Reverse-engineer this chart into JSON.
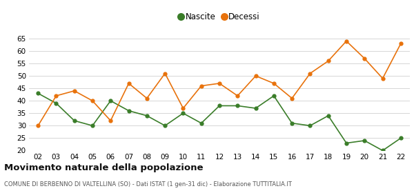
{
  "years": [
    "02",
    "03",
    "04",
    "05",
    "06",
    "07",
    "08",
    "09",
    "10",
    "11",
    "12",
    "13",
    "14",
    "15",
    "16",
    "17",
    "18",
    "19",
    "20",
    "21",
    "22"
  ],
  "nascite": [
    43,
    39,
    32,
    30,
    40,
    36,
    34,
    30,
    35,
    31,
    38,
    38,
    37,
    42,
    31,
    30,
    34,
    23,
    24,
    20,
    25
  ],
  "decessi": [
    30,
    42,
    44,
    40,
    32,
    47,
    41,
    51,
    37,
    46,
    47,
    42,
    50,
    47,
    41,
    51,
    56,
    64,
    57,
    49,
    63
  ],
  "nascite_color": "#3a7d29",
  "decessi_color": "#e8720c",
  "title": "Movimento naturale della popolazione",
  "subtitle": "COMUNE DI BERBENNO DI VALTELLINA (SO) - Dati ISTAT (1 gen-31 dic) - Elaborazione TUTTITALIA.IT",
  "legend_nascite": "Nascite",
  "legend_decessi": "Decessi",
  "ylim_min": 20,
  "ylim_max": 65,
  "yticks": [
    20,
    25,
    30,
    35,
    40,
    45,
    50,
    55,
    60,
    65
  ],
  "background_color": "#ffffff",
  "grid_color": "#d0d0d0"
}
